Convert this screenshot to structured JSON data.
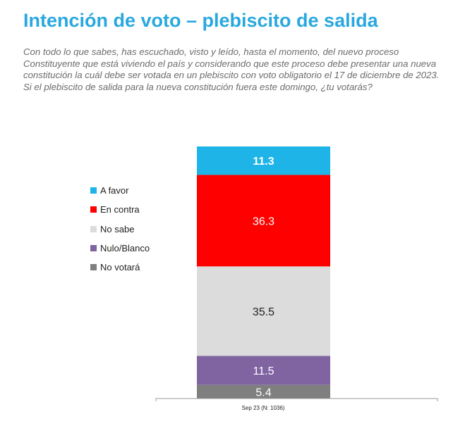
{
  "title": "Intención de voto – plebiscito de salida",
  "question": "Con todo lo que sabes, has escuchado, visto y leído, hasta el momento, del nuevo proceso Constituyente que está viviendo el país y considerando que este proceso debe presentar una nueva constitución la cuál debe ser votada en un plebiscito con voto obligatorio el 17 de diciembre de 2023.  Si el plebiscito de salida para la nueva constitución fuera este domingo, ¿tu votarás?",
  "chart_data": {
    "type": "bar",
    "stacked": true,
    "categories": [
      "Sep 23 (N: 1036)"
    ],
    "series": [
      {
        "name": "A favor",
        "values": [
          11.3
        ],
        "color": "#1eb4e8",
        "label_color": "#ffffff"
      },
      {
        "name": "En contra",
        "values": [
          36.3
        ],
        "color": "#ff0000",
        "label_color": "#ffffff"
      },
      {
        "name": "No sabe",
        "values": [
          35.5
        ],
        "color": "#dcdcdc",
        "label_color": "#222222"
      },
      {
        "name": "Nulo/Blanco",
        "values": [
          11.5
        ],
        "color": "#8064a2",
        "label_color": "#ffffff"
      },
      {
        "name": "No votará",
        "values": [
          5.4
        ],
        "color": "#7f7f7f",
        "label_color": "#ffffff"
      }
    ],
    "ylim": [
      0,
      100
    ],
    "grid": false,
    "legend": "left"
  }
}
